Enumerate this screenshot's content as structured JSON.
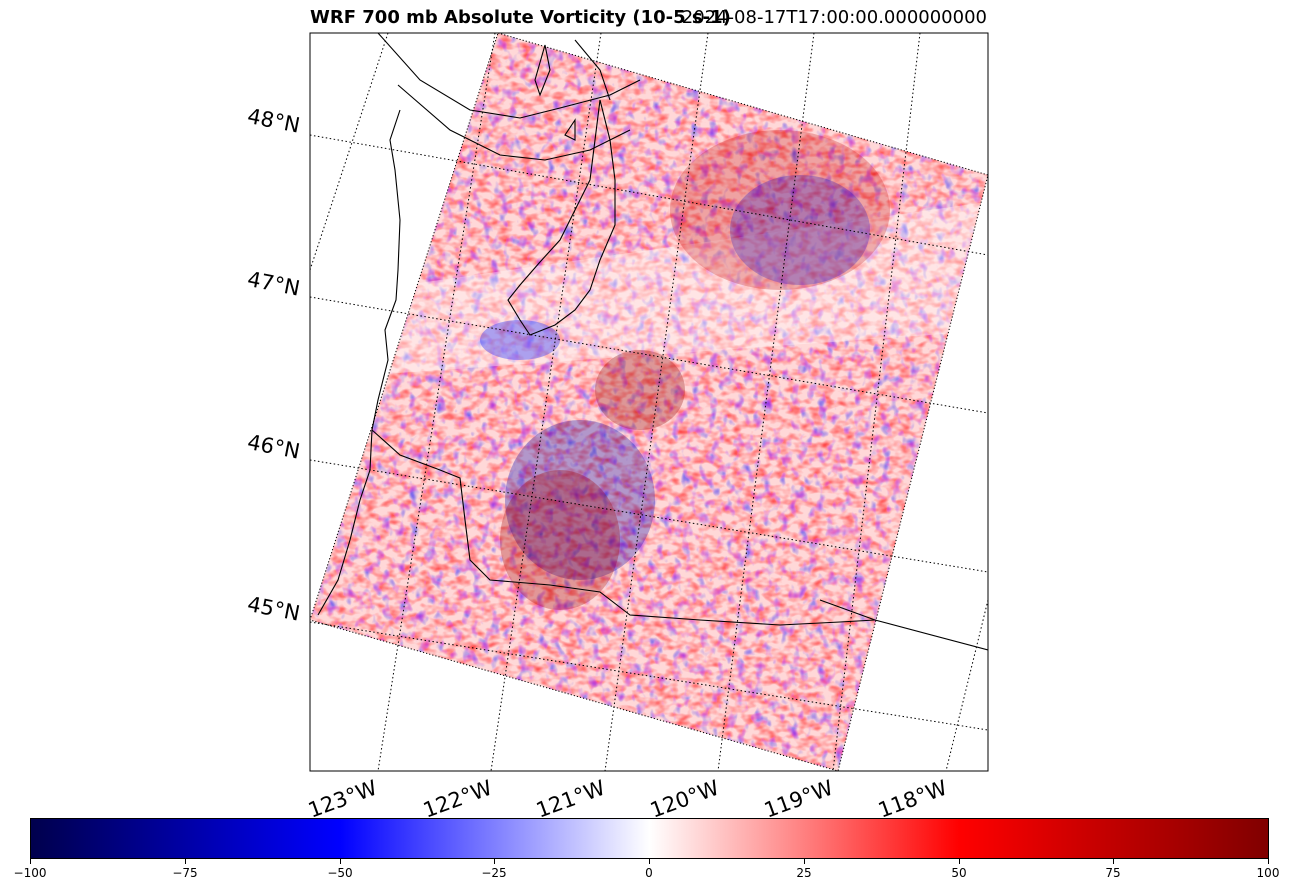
{
  "title": {
    "left": "WRF 700 mb Absolute Vorticity (10-5 s-1)",
    "right": "2024-08-17T17:00:00.000000000"
  },
  "map": {
    "lat_labels": [
      "48°N",
      "47°N",
      "46°N",
      "45°N"
    ],
    "lon_labels": [
      "123°W",
      "122°W",
      "121°W",
      "120°W",
      "119°W",
      "118°W"
    ],
    "colormap": "seismic",
    "colors": {
      "negative": "#00004c",
      "mid_negative": "#0000ff",
      "zero": "#ffffff",
      "mid_positive": "#ff0000",
      "positive": "#800000"
    }
  },
  "colorbar": {
    "ticks": [
      "−100",
      "−75",
      "−50",
      "−25",
      "0",
      "25",
      "50",
      "75",
      "100"
    ],
    "min": -100,
    "max": 100
  }
}
